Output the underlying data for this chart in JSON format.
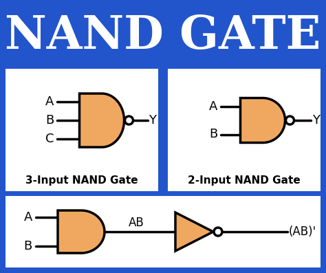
{
  "bg_color": "#2255cc",
  "white": "#ffffff",
  "black": "#000000",
  "orange": "#f0a860",
  "title": "NAND GATE",
  "title_fontsize": 48,
  "label_3input": "3-Input NAND Gate",
  "label_2input": "2-Input NAND Gate",
  "fig_w": 4.74,
  "fig_h": 3.97,
  "dpi": 100
}
